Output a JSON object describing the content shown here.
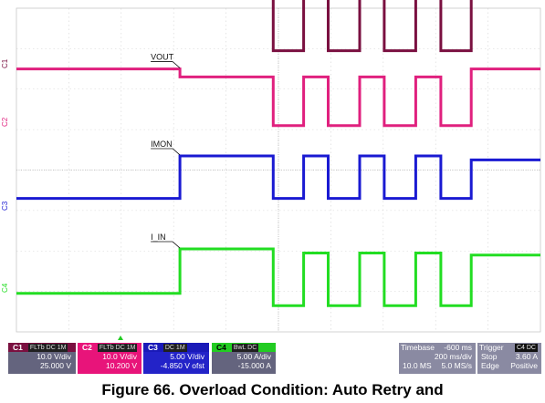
{
  "chart_data": {
    "type": "line",
    "title": "",
    "xlabel": "",
    "ylabel": "",
    "x_unit": "s",
    "timebase_per_div": "200 ms/div",
    "timebase_offset": "-600 ms",
    "divisions": {
      "x": 10,
      "y": 8
    },
    "overload_start_div": 3.12,
    "series": [
      {
        "name": "FLTb",
        "channel": "C1",
        "color": "#7a1040",
        "ref_div": 6.95,
        "x_div": [
          0,
          4.9,
          4.9,
          5.48,
          5.48,
          5.95,
          5.95,
          6.55,
          6.55,
          7.02,
          7.02,
          7.62,
          7.62,
          8.1,
          8.1,
          8.68,
          8.68,
          10
        ],
        "y_div": [
          1.65,
          1.65,
          0,
          0,
          1.65,
          1.65,
          0,
          0,
          1.65,
          1.65,
          0,
          0,
          1.65,
          1.65,
          0,
          0,
          1.65,
          1.65
        ],
        "trace_label": "FLTb"
      },
      {
        "name": "VOUT",
        "channel": "C2",
        "color": "#e0207e",
        "ref_div": 5.1,
        "x_div": [
          0,
          3.12,
          3.12,
          4.9,
          4.9,
          5.48,
          5.48,
          5.95,
          5.95,
          6.55,
          6.55,
          7.02,
          7.02,
          7.62,
          7.62,
          8.1,
          8.1,
          8.68,
          8.68,
          10
        ],
        "y_div": [
          1.4,
          1.4,
          1.2,
          1.2,
          0,
          0,
          1.2,
          1.2,
          0,
          0,
          1.2,
          1.2,
          0,
          0,
          1.2,
          1.2,
          0,
          0,
          1.4,
          1.4
        ],
        "trace_label": "VOUT"
      },
      {
        "name": "IMON",
        "channel": "C3",
        "color": "#1a1ad2",
        "ref_div": 3.3,
        "x_div": [
          0,
          3.12,
          3.12,
          4.9,
          4.9,
          5.48,
          5.48,
          5.95,
          5.95,
          6.55,
          6.55,
          7.02,
          7.02,
          7.62,
          7.62,
          8.1,
          8.1,
          8.68,
          8.68,
          10
        ],
        "y_div": [
          0,
          0,
          1.05,
          1.05,
          0,
          0,
          1.05,
          1.05,
          0,
          0,
          1.05,
          1.05,
          0,
          0,
          1.05,
          1.05,
          0,
          0,
          0.95,
          0.95
        ],
        "trace_label": "IMON"
      },
      {
        "name": "I_IN",
        "channel": "C4",
        "color": "#22dd22",
        "ref_div": 0.95,
        "x_div": [
          0,
          3.12,
          3.12,
          4.9,
          4.9,
          5.48,
          5.48,
          5.95,
          5.95,
          6.55,
          6.55,
          7.02,
          7.02,
          7.62,
          7.62,
          8.1,
          8.1,
          8.68,
          8.68,
          10
        ],
        "y_div": [
          0,
          0,
          1.1,
          1.1,
          -0.3,
          -0.3,
          1.0,
          1.0,
          -0.3,
          -0.3,
          1.0,
          1.0,
          -0.3,
          -0.3,
          1.0,
          1.0,
          -0.3,
          -0.3,
          0.95,
          0.95
        ],
        "trace_label": "I_IN"
      }
    ],
    "grid": true
  },
  "channels": {
    "c1": {
      "name": "C1",
      "flags": "FLTb DC 1M",
      "scale": "10.0 V/div",
      "offset": "25.000 V",
      "marker": "C1"
    },
    "c2": {
      "name": "C2",
      "flags": "FLTb DC 1M",
      "scale": "10.0 V/div",
      "offset": "10.200 V",
      "marker": "C2"
    },
    "c3": {
      "name": "C3",
      "flags": "DC 1M",
      "scale": "5.00 V/div",
      "offset": "-4.850 V ofst",
      "marker": "C3"
    },
    "c4": {
      "name": "C4",
      "flags": "BwL DC",
      "scale": "5.00 A/div",
      "offset": "-15.000 A",
      "marker": "C4"
    }
  },
  "timebase": {
    "label": "Timebase",
    "offset": "-600 ms",
    "per_div": "200 ms/div",
    "samples": "10.0 MS",
    "rate": "5.0 MS/s"
  },
  "trigger": {
    "label": "Trigger",
    "channel": "C4 DC",
    "mode": "Stop",
    "level": "3.60 A",
    "type": "Edge",
    "slope": "Positive"
  },
  "caption": "Figure 66. Overload Condition: Auto Retry and"
}
